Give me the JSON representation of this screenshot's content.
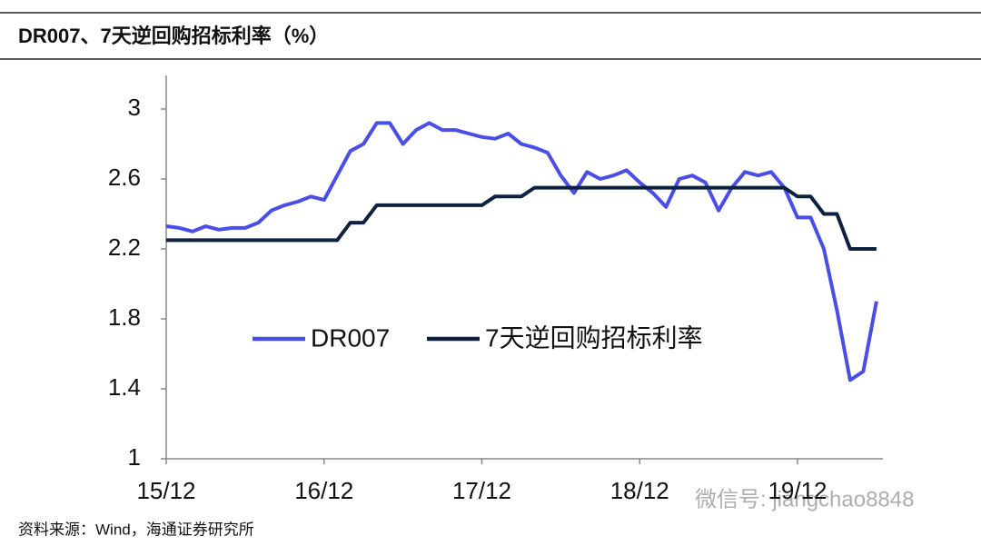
{
  "header": {
    "title": "DR007、7天逆回购招标利率（%）"
  },
  "chart_data": {
    "type": "line",
    "categories": [
      "15/12",
      null,
      null,
      null,
      null,
      null,
      null,
      null,
      null,
      null,
      null,
      null,
      "16/12",
      null,
      null,
      null,
      null,
      null,
      null,
      null,
      null,
      null,
      null,
      null,
      "17/12",
      null,
      null,
      null,
      null,
      null,
      null,
      null,
      null,
      null,
      null,
      null,
      "18/12",
      null,
      null,
      null,
      null,
      null,
      null,
      null,
      null,
      null,
      null,
      null,
      "19/12",
      null,
      null,
      null,
      null,
      null,
      null
    ],
    "series": [
      {
        "name": "DR007",
        "color": "#4a4ee8",
        "values": [
          2.33,
          2.32,
          2.3,
          2.33,
          2.31,
          2.32,
          2.32,
          2.35,
          2.42,
          2.45,
          2.47,
          2.5,
          2.48,
          2.62,
          2.76,
          2.8,
          2.92,
          2.92,
          2.8,
          2.88,
          2.92,
          2.88,
          2.88,
          2.86,
          2.84,
          2.83,
          2.86,
          2.8,
          2.78,
          2.75,
          2.62,
          2.52,
          2.64,
          2.6,
          2.62,
          2.65,
          2.58,
          2.52,
          2.44,
          2.6,
          2.62,
          2.58,
          2.42,
          2.55,
          2.64,
          2.62,
          2.64,
          2.55,
          2.38,
          2.38,
          2.2,
          1.85,
          1.45,
          1.5,
          1.9
        ]
      },
      {
        "name": "7天逆回购招标利率",
        "color": "#0d2240",
        "values": [
          2.25,
          2.25,
          2.25,
          2.25,
          2.25,
          2.25,
          2.25,
          2.25,
          2.25,
          2.25,
          2.25,
          2.25,
          2.25,
          2.25,
          2.35,
          2.35,
          2.45,
          2.45,
          2.45,
          2.45,
          2.45,
          2.45,
          2.45,
          2.45,
          2.45,
          2.5,
          2.5,
          2.5,
          2.55,
          2.55,
          2.55,
          2.55,
          2.55,
          2.55,
          2.55,
          2.55,
          2.55,
          2.55,
          2.55,
          2.55,
          2.55,
          2.55,
          2.55,
          2.55,
          2.55,
          2.55,
          2.55,
          2.55,
          2.5,
          2.5,
          2.4,
          2.4,
          2.2,
          2.2,
          2.2
        ]
      }
    ],
    "ylim": [
      1,
      3.2
    ],
    "yticks": [
      1,
      1.4,
      1.8,
      2.2,
      2.6,
      3
    ],
    "grid": false
  },
  "footer": {
    "source": "资料来源：Wind，海通证券研究所",
    "watermark": "微信号: jiangchao8848"
  }
}
